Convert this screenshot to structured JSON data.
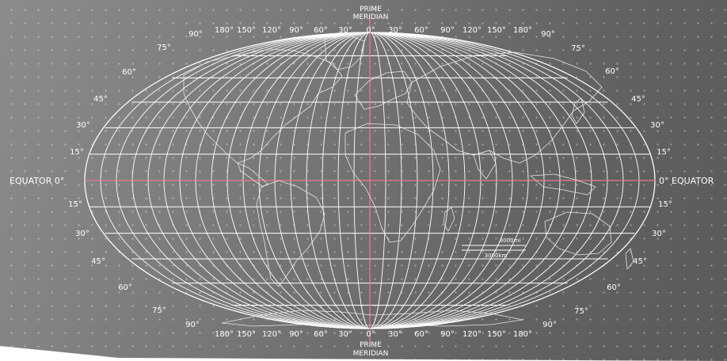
{
  "map": {
    "prime_meridian_label": [
      "PRIME",
      "MERIDIAN"
    ],
    "equator_left_label": "EQUATOR 0°",
    "equator_right_label": "0° EQUATOR",
    "longitude_labels": [
      "180°",
      "150°",
      "120°",
      "90°",
      "60°",
      "30°",
      "0°",
      "30°",
      "60°",
      "90°",
      "120°",
      "150°",
      "180°"
    ],
    "latitude_labels_north": [
      "90°",
      "75°",
      "60°",
      "45°",
      "30°",
      "15°"
    ],
    "latitude_labels_south": [
      "15°",
      "30°",
      "45°",
      "60°",
      "75°",
      "90°"
    ],
    "scale_labels": [
      "3000mi",
      "3000km"
    ],
    "colors": {
      "grid": "#ffffff",
      "equator": "#e8798f",
      "prime_meridian": "#e8798f",
      "coastline": "#e6e6e6"
    }
  }
}
